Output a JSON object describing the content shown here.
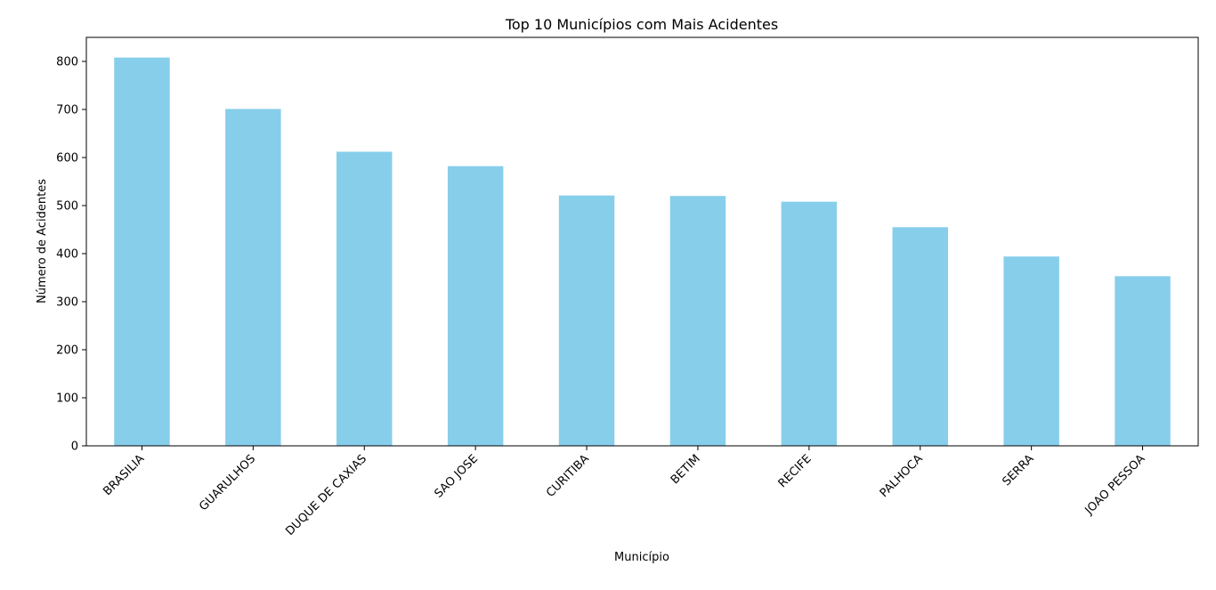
{
  "chart_data": {
    "type": "bar",
    "title": "Top 10 Municípios com Mais Acidentes",
    "xlabel": "Município",
    "ylabel": "Número de Acidentes",
    "categories": [
      "BRASILIA",
      "GUARULHOS",
      "DUQUE DE CAXIAS",
      "SAO JOSE",
      "CURITIBA",
      "BETIM",
      "RECIFE",
      "PALHOCA",
      "SERRA",
      "JOAO PESSOA"
    ],
    "values": [
      808,
      701,
      612,
      582,
      521,
      520,
      508,
      455,
      394,
      353
    ],
    "ylim": [
      0,
      850
    ],
    "yticks": [
      0,
      100,
      200,
      300,
      400,
      500,
      600,
      700,
      800
    ],
    "bar_color": "#87ceeb",
    "grid": false,
    "legend": false
  }
}
